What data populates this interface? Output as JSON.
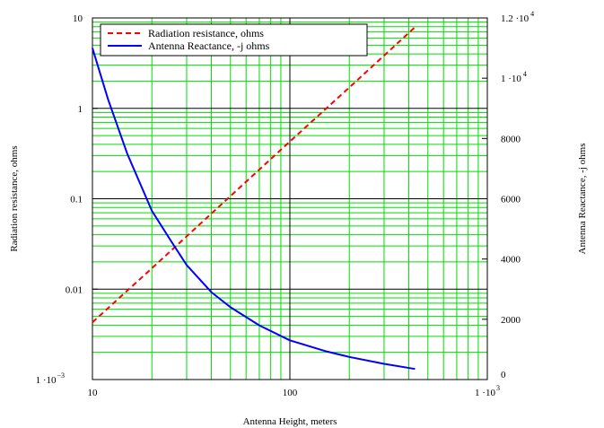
{
  "chart_data": {
    "type": "line",
    "title": "",
    "xlabel": "Antenna Height, meters",
    "ylabel": "Radiation resistance, ohms",
    "y2label": "Antenna Reactance, -j ohms",
    "x_scale": "log",
    "y_scale": "log",
    "y2_scale": "linear",
    "xlim": [
      10,
      1000
    ],
    "ylim": [
      0.001,
      10
    ],
    "y2lim": [
      0,
      12000
    ],
    "grid": true,
    "grid_color": "#00dd00",
    "major_grid_color": "#000000",
    "legend_position": "top-left",
    "x_ticks": [
      {
        "value": 10,
        "label": "10"
      },
      {
        "value": 100,
        "label": "100"
      },
      {
        "value": 1000,
        "label": "1 ·10",
        "sup": "3"
      }
    ],
    "y_ticks": [
      {
        "value": 10,
        "label": "10"
      },
      {
        "value": 1,
        "label": "1"
      },
      {
        "value": 0.1,
        "label": "0.1"
      },
      {
        "value": 0.01,
        "label": "0.01"
      },
      {
        "value": 0.001,
        "label": "1 ·10",
        "sup": "−3"
      }
    ],
    "y2_ticks": [
      {
        "value": 12000,
        "label": "1.2  ·10",
        "sup": "4"
      },
      {
        "value": 10000,
        "label": "1  ·10",
        "sup": "4"
      },
      {
        "value": 8000,
        "label": "8000"
      },
      {
        "value": 6000,
        "label": "6000"
      },
      {
        "value": 4000,
        "label": "4000"
      },
      {
        "value": 2000,
        "label": "2000"
      },
      {
        "value": 0,
        "label": "0"
      }
    ],
    "series": [
      {
        "name": "Radiation resistance, ohms",
        "axis": "left",
        "color": "#ff0000",
        "dash": "dashed",
        "x": [
          10,
          20,
          50,
          100,
          200,
          430
        ],
        "y": [
          0.0043,
          0.017,
          0.107,
          0.43,
          1.7,
          7.9
        ]
      },
      {
        "name": "Antenna Reactance, -j ohms",
        "axis": "right",
        "color": "#0000ff",
        "dash": "solid",
        "x": [
          10,
          12,
          15,
          20,
          25,
          30,
          40,
          50,
          70,
          100,
          150,
          200,
          300,
          430
        ],
        "y": [
          11000,
          9300,
          7500,
          5600,
          4600,
          3800,
          2900,
          2400,
          1800,
          1300,
          950,
          750,
          520,
          350
        ]
      }
    ]
  }
}
